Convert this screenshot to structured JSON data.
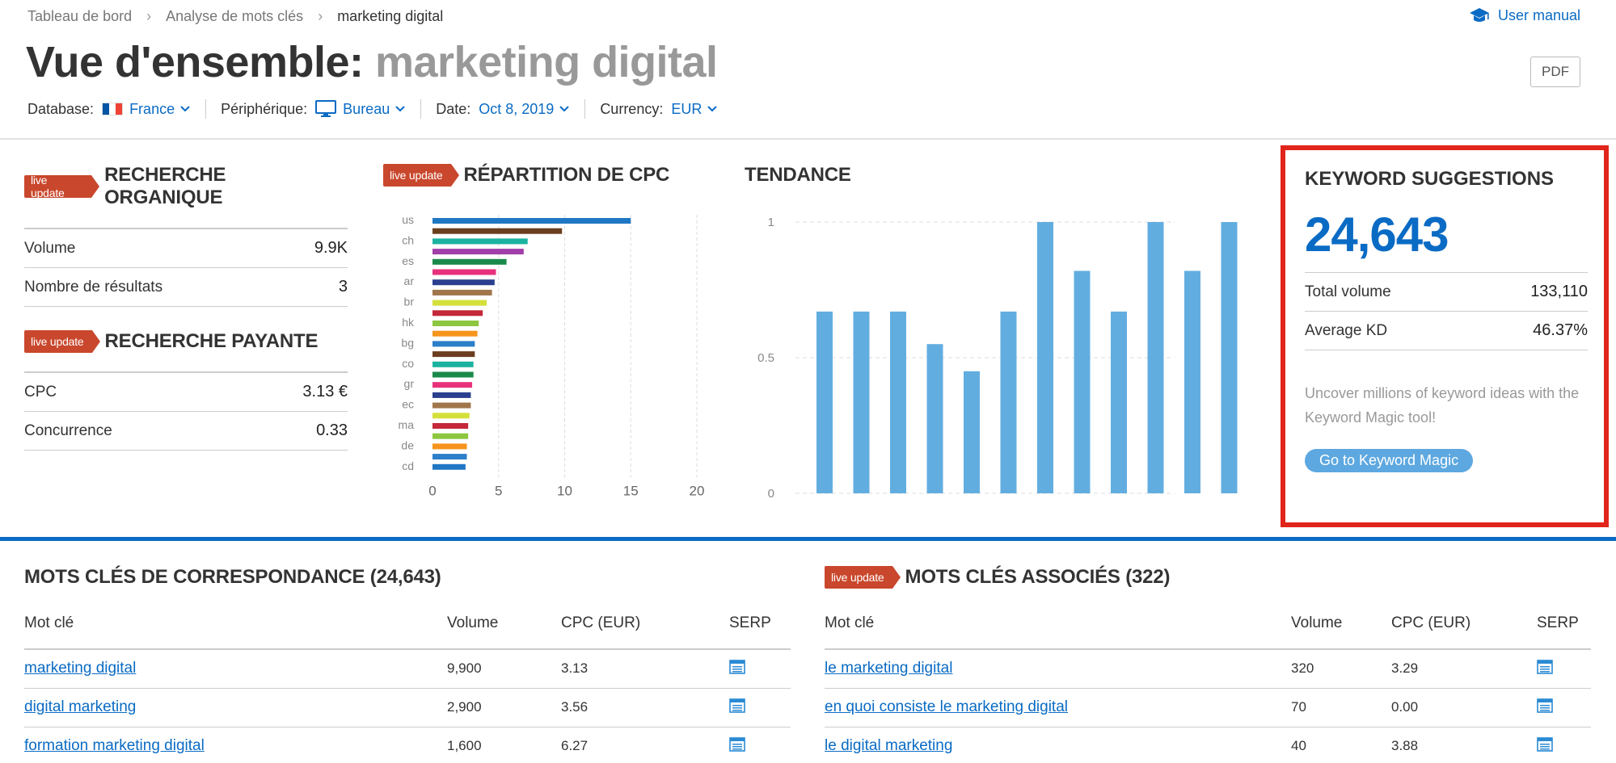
{
  "breadcrumb": [
    "Tableau de bord",
    "Analyse de mots clés",
    "marketing digital"
  ],
  "user_manual": "User manual",
  "title": {
    "prefix": "Vue d'ensemble:",
    "keyword": "marketing digital"
  },
  "pdf_label": "PDF",
  "filters": {
    "database_label": "Database:",
    "database_value": "France",
    "device_label": "Périphérique:",
    "device_value": "Bureau",
    "date_label": "Date:",
    "date_value": "Oct 8, 2019",
    "currency_label": "Currency:",
    "currency_value": "EUR"
  },
  "live_badge": "live update",
  "organic": {
    "title": "RECHERCHE ORGANIQUE",
    "rows": [
      {
        "label": "Volume",
        "value": "9.9K"
      },
      {
        "label": "Nombre de résultats",
        "value": "3"
      }
    ]
  },
  "paid": {
    "title": "RECHERCHE PAYANTE",
    "rows": [
      {
        "label": "CPC",
        "value": "3.13 €"
      },
      {
        "label": "Concurrence",
        "value": "0.33"
      }
    ]
  },
  "cpc_chart_title": "RÉPARTITION DE CPC",
  "trend_title": "TENDANCE",
  "keyword_suggestions": {
    "title": "KEYWORD SUGGESTIONS",
    "count": "24,643",
    "rows": [
      {
        "label": "Total volume",
        "value": "133,110"
      },
      {
        "label": "Average KD",
        "value": "46.37%"
      }
    ],
    "description": "Uncover millions of keyword ideas with the Keyword Magic tool!",
    "button": "Go to Keyword Magic"
  },
  "chart_data": [
    {
      "type": "bar",
      "orientation": "horizontal",
      "categories": [
        "us",
        "",
        "ch",
        "",
        "es",
        "",
        "ar",
        "",
        "br",
        "",
        "hk",
        "",
        "bg",
        "",
        "co",
        "",
        "gr",
        "",
        "ec",
        "",
        "ma",
        "",
        "de",
        "",
        "cd"
      ],
      "values": [
        15,
        9.8,
        7.2,
        6.9,
        5.6,
        4.8,
        4.7,
        4.5,
        4.1,
        3.8,
        3.5,
        3.4,
        3.2,
        3.2,
        3.1,
        3.1,
        3.0,
        2.9,
        2.9,
        2.8,
        2.7,
        2.7,
        2.6,
        2.6,
        2.5
      ],
      "colors": [
        "#1f77c4",
        "#6b3e1f",
        "#1bb3a0",
        "#a13ea8",
        "#1a8a4a",
        "#e8317a",
        "#2a3f8f",
        "#a0764a",
        "#d4e03a",
        "#c4283a",
        "#8dc63f",
        "#f7941d",
        "#2c7fc9",
        "#6b3e1f",
        "#1bb3a0",
        "#1a8a4a",
        "#e8317a",
        "#2a3f8f",
        "#a0764a",
        "#d4e03a",
        "#c4283a",
        "#8dc63f",
        "#f7941d",
        "#2c7fc9",
        "#1f77c4"
      ],
      "xlim": [
        0,
        20
      ],
      "xticks": [
        0,
        5,
        10,
        15,
        20
      ]
    },
    {
      "type": "bar",
      "values": [
        0.67,
        0.67,
        0.67,
        0.55,
        0.45,
        0.67,
        1,
        0.82,
        0.67,
        1,
        0.82,
        1
      ],
      "ylim": [
        0,
        1
      ],
      "yticks": [
        "0",
        "0.5",
        "1"
      ],
      "color": "#62ade0"
    }
  ],
  "matching": {
    "title": "MOTS CLÉS DE CORRESPONDANCE (24,643)",
    "headers": [
      "Mot clé",
      "Volume",
      "CPC (EUR)",
      "SERP"
    ],
    "rows": [
      {
        "keyword": "marketing digital",
        "volume": "9,900",
        "cpc": "3.13"
      },
      {
        "keyword": "digital marketing",
        "volume": "2,900",
        "cpc": "3.56"
      },
      {
        "keyword": "formation marketing digital",
        "volume": "1,600",
        "cpc": "6.27"
      }
    ]
  },
  "related": {
    "title": "MOTS CLÉS ASSOCIÉS (322)",
    "headers": [
      "Mot clé",
      "Volume",
      "CPC (EUR)",
      "SERP"
    ],
    "rows": [
      {
        "keyword": "le marketing digital",
        "volume": "320",
        "cpc": "3.29"
      },
      {
        "keyword": "en quoi consiste le marketing digital",
        "volume": "70",
        "cpc": "0.00"
      },
      {
        "keyword": "le digital marketing",
        "volume": "40",
        "cpc": "3.88"
      }
    ]
  },
  "icons": {
    "manual": "graduation-cap-icon",
    "device": "monitor-icon",
    "serp": "serp-list-icon",
    "chevron": "chevron-down-icon"
  }
}
